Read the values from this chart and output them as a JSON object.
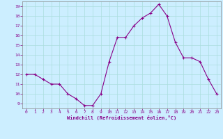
{
  "x": [
    0,
    1,
    2,
    3,
    4,
    5,
    6,
    7,
    8,
    9,
    10,
    11,
    12,
    13,
    14,
    15,
    16,
    17,
    18,
    19,
    20,
    21,
    22,
    23
  ],
  "y": [
    12.0,
    12.0,
    11.5,
    11.0,
    11.0,
    10.0,
    9.5,
    8.8,
    8.8,
    10.0,
    13.3,
    15.8,
    15.8,
    17.0,
    17.8,
    18.3,
    19.2,
    18.0,
    15.3,
    13.7,
    13.7,
    13.3,
    11.5,
    10.0
  ],
  "line_color": "#880088",
  "marker": "+",
  "marker_color": "#880088",
  "bg_color": "#cceeff",
  "grid_color": "#aadddd",
  "xlabel": "Windchill (Refroidissement éolien,°C)",
  "xlabel_color": "#880088",
  "tick_color": "#880088",
  "axis_color": "#888888",
  "xlim": [
    -0.5,
    23.5
  ],
  "ylim": [
    8.5,
    19.5
  ],
  "yticks": [
    9,
    10,
    11,
    12,
    13,
    14,
    15,
    16,
    17,
    18,
    19
  ],
  "xticks": [
    0,
    1,
    2,
    3,
    4,
    5,
    6,
    7,
    8,
    9,
    10,
    11,
    12,
    13,
    14,
    15,
    16,
    17,
    18,
    19,
    20,
    21,
    22,
    23
  ]
}
